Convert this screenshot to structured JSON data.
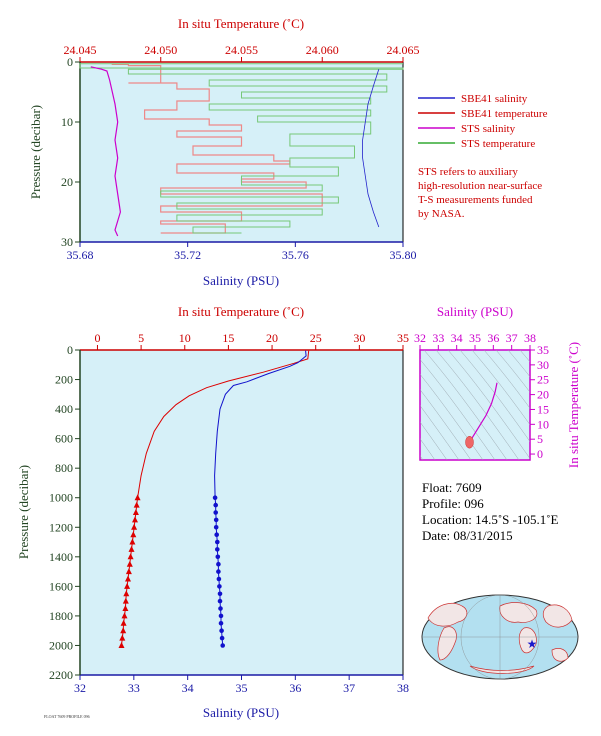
{
  "chart_data": [
    {
      "type": "line",
      "top_axis": {
        "title": "In situ Temperature (˚C)",
        "range": [
          24.045,
          24.065
        ],
        "ticks": [
          "24.045",
          "24.050",
          "24.055",
          "24.060",
          "24.065"
        ]
      },
      "bottom_axis": {
        "title": "Salinity (PSU)",
        "range": [
          35.68,
          35.8
        ],
        "ticks": [
          "35.68",
          "35.72",
          "35.76",
          "35.80"
        ]
      },
      "left_axis": {
        "title": "Pressure (decibar)",
        "range": [
          0,
          30
        ],
        "ticks": [
          "0",
          "10",
          "20",
          "30"
        ]
      },
      "legend": {
        "position": "right",
        "entries": [
          {
            "label": "SBE41 salinity",
            "color": "#2222cc"
          },
          {
            "label": "SBE41 temperature",
            "color": "#cc0000"
          },
          {
            "label": "STS salinity",
            "color": "#cc00cc"
          },
          {
            "label": "STS temperature",
            "color": "#33aa33"
          }
        ]
      },
      "note": [
        "STS refers to auxiliary",
        "high-resolution near-surface",
        "T-S measurements funded",
        "by NASA."
      ],
      "series": [
        {
          "name": "SBE41 salinity",
          "values": [
            [
              35.791,
              1.2
            ],
            [
              35.789,
              4
            ],
            [
              35.787,
              7
            ],
            [
              35.786,
              10
            ],
            [
              35.785,
              13
            ],
            [
              35.785,
              16
            ],
            [
              35.786,
              19
            ],
            [
              35.787,
              22
            ],
            [
              35.789,
              25
            ],
            [
              35.791,
              27.5
            ]
          ]
        },
        {
          "name": "SBE41 temperature",
          "values": [
            [
              24.047,
              0.3
            ],
            [
              24.048,
              0.4
            ],
            [
              24.05,
              0.6
            ],
            [
              24.048,
              3.5
            ],
            [
              24.051,
              3.5
            ],
            [
              24.051,
              4.5
            ],
            [
              24.053,
              4.5
            ],
            [
              24.051,
              6.5
            ],
            [
              24.049,
              8
            ],
            [
              24.053,
              9.5
            ],
            [
              24.055,
              10.5
            ],
            [
              24.051,
              11.5
            ],
            [
              24.055,
              12.5
            ],
            [
              24.052,
              14
            ],
            [
              24.057,
              15.5
            ],
            [
              24.058,
              16.5
            ],
            [
              24.051,
              17
            ],
            [
              24.057,
              18.5
            ],
            [
              24.055,
              19.5
            ],
            [
              24.059,
              20
            ],
            [
              24.05,
              21
            ],
            [
              24.06,
              22
            ],
            [
              24.05,
              24
            ],
            [
              24.055,
              25
            ],
            [
              24.05,
              26.5
            ],
            [
              24.054,
              27
            ],
            [
              24.05,
              28.5
            ]
          ]
        },
        {
          "name": "STS salinity",
          "values": [
            [
              35.684,
              0.8
            ],
            [
              35.688,
              1.2
            ],
            [
              35.69,
              1.5
            ],
            [
              35.691,
              3
            ],
            [
              35.692,
              5
            ],
            [
              35.693,
              7
            ],
            [
              35.694,
              10
            ],
            [
              35.693,
              13
            ],
            [
              35.694,
              16
            ],
            [
              35.693,
              19
            ],
            [
              35.694,
              22
            ],
            [
              35.695,
              25
            ],
            [
              35.693,
              28
            ],
            [
              35.694,
              29
            ]
          ]
        },
        {
          "name": "STS temperature",
          "values": [
            [
              24.065,
              0.3
            ],
            [
              24.045,
              0.3
            ],
            [
              24.065,
              1
            ],
            [
              24.048,
              1.2
            ],
            [
              24.064,
              2
            ],
            [
              24.053,
              3
            ],
            [
              24.064,
              4
            ],
            [
              24.055,
              5
            ],
            [
              24.063,
              6
            ],
            [
              24.053,
              7
            ],
            [
              24.063,
              8
            ],
            [
              24.056,
              9
            ],
            [
              24.063,
              10
            ],
            [
              24.058,
              12
            ],
            [
              24.062,
              14
            ],
            [
              24.058,
              16
            ],
            [
              24.061,
              17.5
            ],
            [
              24.055,
              19
            ],
            [
              24.06,
              20.5
            ],
            [
              24.05,
              21.5
            ],
            [
              24.061,
              22.5
            ],
            [
              24.051,
              23.5
            ],
            [
              24.06,
              24.5
            ],
            [
              24.051,
              25.5
            ],
            [
              24.058,
              26.5
            ],
            [
              24.052,
              27.5
            ],
            [
              24.055,
              28.5
            ]
          ]
        }
      ]
    },
    {
      "type": "line",
      "top_axis": {
        "title": "In situ Temperature (˚C)",
        "range": [
          -2,
          35
        ],
        "ticks": [
          "0",
          "5",
          "10",
          "15",
          "20",
          "25",
          "30",
          "35"
        ]
      },
      "bottom_axis": {
        "title": "Salinity (PSU)",
        "range": [
          32,
          38
        ],
        "ticks": [
          "32",
          "33",
          "34",
          "35",
          "36",
          "37",
          "38"
        ]
      },
      "left_axis": {
        "title": "Pressure (decibar)",
        "range": [
          0,
          2200
        ],
        "ticks": [
          "0",
          "200",
          "400",
          "600",
          "800",
          "1000",
          "1200",
          "1400",
          "1600",
          "1800",
          "2000",
          "2200"
        ]
      },
      "series": [
        {
          "name": "Temperature",
          "color": "#dd0000",
          "values": [
            [
              24.2,
              5
            ],
            [
              24.1,
              60
            ],
            [
              22.5,
              90
            ],
            [
              19,
              150
            ],
            [
              15,
              210
            ],
            [
              12.5,
              255
            ],
            [
              10.5,
              310
            ],
            [
              9,
              370
            ],
            [
              7.6,
              450
            ],
            [
              6.5,
              550
            ],
            [
              5.6,
              700
            ],
            [
              5,
              850
            ],
            [
              4.6,
              1000
            ]
          ]
        },
        {
          "name": "Salinity",
          "color": "#1111cc",
          "values": [
            [
              36.19,
              5
            ],
            [
              36.2,
              40
            ],
            [
              36.05,
              85
            ],
            [
              35.9,
              110
            ],
            [
              35.5,
              160
            ],
            [
              35.1,
              215
            ],
            [
              34.85,
              240
            ],
            [
              34.7,
              300
            ],
            [
              34.6,
              400
            ],
            [
              34.55,
              550
            ],
            [
              34.52,
              700
            ],
            [
              34.5,
              850
            ],
            [
              34.51,
              1000
            ]
          ]
        }
      ],
      "markers": {
        "pressure": [
          1000,
          1050,
          1100,
          1150,
          1200,
          1250,
          1300,
          1350,
          1400,
          1450,
          1500,
          1550,
          1600,
          1650,
          1700,
          1750,
          1800,
          1850,
          1900,
          1950,
          2000
        ],
        "temperature": [
          4.6,
          4.5,
          4.4,
          4.3,
          4.2,
          4.1,
          4.0,
          3.9,
          3.8,
          3.7,
          3.6,
          3.5,
          3.4,
          3.3,
          3.25,
          3.2,
          3.1,
          3.0,
          2.95,
          2.85,
          2.75
        ],
        "salinity": [
          34.51,
          34.52,
          34.52,
          34.53,
          34.53,
          34.54,
          34.55,
          34.55,
          34.56,
          34.57,
          34.57,
          34.58,
          34.59,
          34.6,
          34.6,
          34.61,
          34.62,
          34.62,
          34.63,
          34.64,
          34.65
        ]
      }
    },
    {
      "type": "line",
      "top_axis": {
        "title": "Salinity (PSU)",
        "range": [
          32,
          38
        ],
        "ticks": [
          "32",
          "33",
          "34",
          "35",
          "36",
          "37",
          "38"
        ]
      },
      "right_axis": {
        "title": "In situ Temperature (˚C)",
        "range": [
          -2,
          35
        ],
        "ticks": [
          "0",
          "5",
          "10",
          "15",
          "20",
          "25",
          "30",
          "35"
        ]
      },
      "series": [
        {
          "name": "T-S",
          "values": [
            [
              36.2,
              24
            ],
            [
              36.1,
              21
            ],
            [
              35.9,
              17
            ],
            [
              35.6,
              13
            ],
            [
              35.3,
              10
            ],
            [
              35.1,
              8
            ],
            [
              34.95,
              6.5
            ],
            [
              34.8,
              5
            ],
            [
              34.7,
              4
            ]
          ]
        }
      ]
    }
  ],
  "float_info": {
    "float": "Float:  7609",
    "profile": "Profile:  096",
    "location": "Location:  14.5˚S  -105.1˚E",
    "date": "Date:  08/31/2015"
  },
  "footer": "FLOAT 7609 PROFILE 096",
  "colors": {
    "panel_bg": "#d6f0f8",
    "axis_red": "#cc0000",
    "axis_blue": "#1a1aa6",
    "axis_green": "#224422",
    "axis_magenta": "#cc00cc"
  }
}
